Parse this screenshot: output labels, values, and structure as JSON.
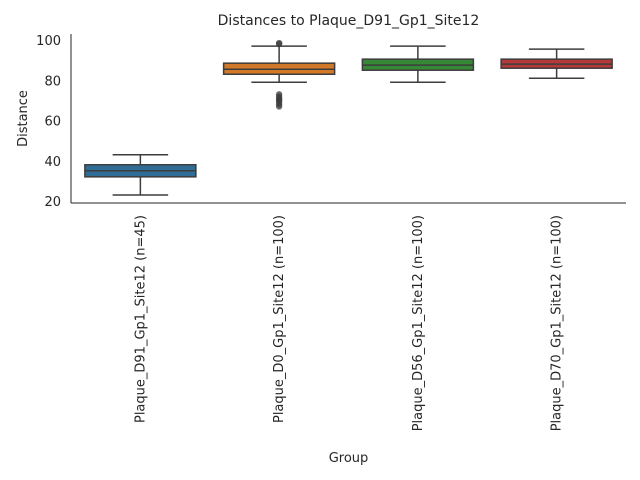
{
  "chart_data": {
    "type": "box",
    "title": "Distances to Plaque_D91_Gp1_Site12",
    "xlabel": "Group",
    "ylabel": "Distance",
    "ylim": [
      19,
      103
    ],
    "yticks": [
      20,
      40,
      60,
      80,
      100
    ],
    "grid": false,
    "categories": [
      "Plaque_D91_Gp1_Site12 (n=45)",
      "Plaque_D0_Gp1_Site12 (n=100)",
      "Plaque_D56_Gp1_Site12 (n=100)",
      "Plaque_D70_Gp1_Site12 (n=100)"
    ],
    "boxes": [
      {
        "whisker_low": 23,
        "q1": 32,
        "median": 35,
        "q3": 38,
        "whisker_high": 43,
        "outliers": [],
        "color": "#3274a1"
      },
      {
        "whisker_low": 79,
        "q1": 83,
        "median": 85.5,
        "q3": 88.5,
        "whisker_high": 97,
        "outliers": [
          67,
          68,
          69,
          70,
          70.5,
          71,
          72,
          73,
          98,
          98.5
        ],
        "color": "#e1812c"
      },
      {
        "whisker_low": 79,
        "q1": 85,
        "median": 87.5,
        "q3": 90.5,
        "whisker_high": 97,
        "outliers": [],
        "color": "#3a923a"
      },
      {
        "whisker_low": 81,
        "q1": 86,
        "median": 88,
        "q3": 90.5,
        "whisker_high": 95.5,
        "outliers": [],
        "color": "#c03d3e"
      }
    ]
  }
}
